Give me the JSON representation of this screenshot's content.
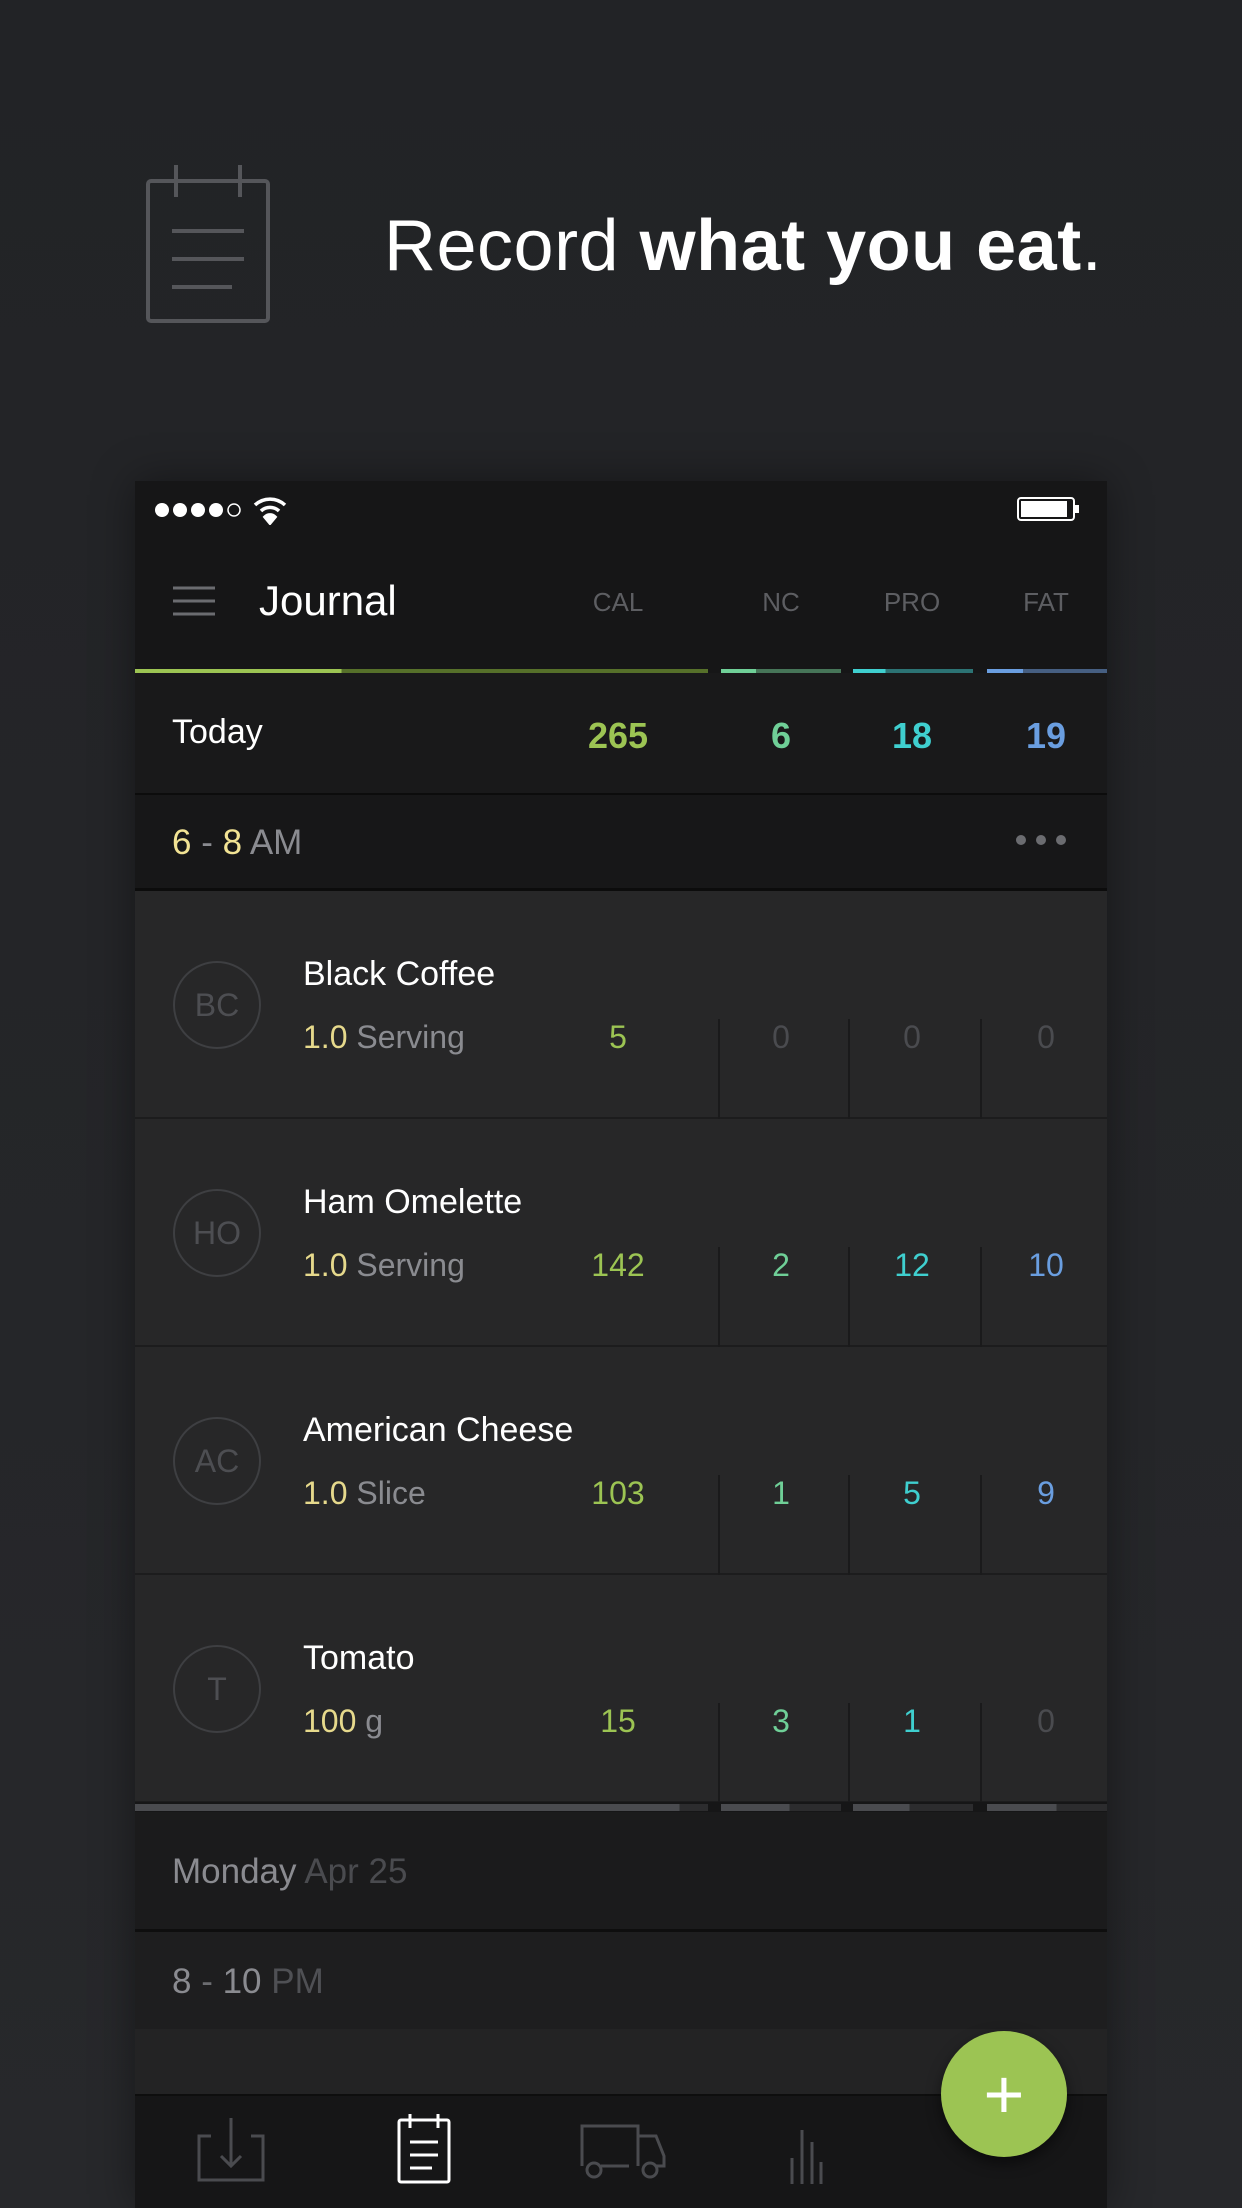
{
  "headline": {
    "light": "Record ",
    "bold": "what you eat",
    "end": "."
  },
  "header": {
    "title": "Journal",
    "columns": [
      "CAL",
      "NC",
      "PRO",
      "FAT"
    ]
  },
  "colors": {
    "cal": "#9cc453",
    "nc": "#6fcf97",
    "pro": "#3fcfcf",
    "fat": "#6a9ee0",
    "accent": "#9cc453"
  },
  "today": {
    "label": "Today",
    "values": [
      "265",
      "6",
      "18",
      "19"
    ]
  },
  "meal": {
    "start": "6",
    "sep": " - ",
    "end": "8",
    "period": " AM",
    "menu_icon": "more-dots-icon"
  },
  "foods": [
    {
      "initials": "BC",
      "name": "Black Coffee",
      "qty": "1.0",
      "unit": " Serving",
      "values": [
        "5",
        "0",
        "0",
        "0"
      ]
    },
    {
      "initials": "HO",
      "name": "Ham Omelette",
      "qty": "1.0",
      "unit": " Serving",
      "values": [
        "142",
        "2",
        "12",
        "10"
      ]
    },
    {
      "initials": "AC",
      "name": "American Cheese",
      "qty": "1.0",
      "unit": " Slice",
      "values": [
        "103",
        "1",
        "5",
        "9"
      ]
    },
    {
      "initials": "T",
      "name": "Tomato",
      "qty": "100",
      "unit": " g",
      "values": [
        "15",
        "3",
        "1",
        "0"
      ]
    }
  ],
  "day": {
    "name": "Monday",
    "date": " Apr 25"
  },
  "meal2": {
    "start": "8",
    "sep": " - ",
    "end": "10",
    "period": " PM"
  },
  "tabs": [
    "import-icon",
    "journal-icon",
    "delivery-truck-icon",
    "stats-icon"
  ],
  "fab": "+"
}
